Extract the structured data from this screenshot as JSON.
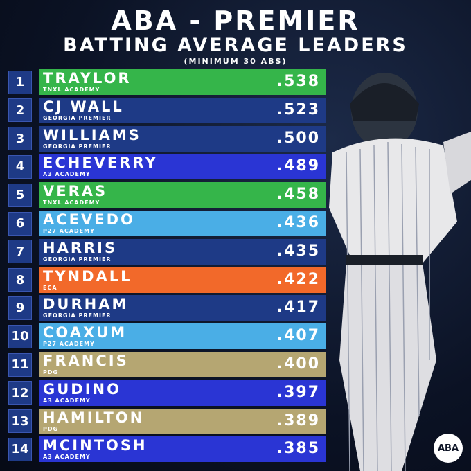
{
  "header": {
    "title": "ABA - PREMIER",
    "subtitle": "BATTING AVERAGE LEADERS",
    "note": "(MINIMUM 30 ABS)"
  },
  "rows": [
    {
      "rank": 1,
      "name": "TRAYLOR",
      "team": "TNXL ACADEMY",
      "avg": ".538",
      "color": "#35b54a"
    },
    {
      "rank": 2,
      "name": "CJ WALL",
      "team": "GEORGIA PREMIER",
      "avg": ".523",
      "color": "#1e3a86"
    },
    {
      "rank": 3,
      "name": "WILLIAMS",
      "team": "GEORGIA PREMIER",
      "avg": ".500",
      "color": "#1e3a86"
    },
    {
      "rank": 4,
      "name": "ECHEVERRY",
      "team": "A3 ACADEMY",
      "avg": ".489",
      "color": "#2a35d4"
    },
    {
      "rank": 5,
      "name": "VERAS",
      "team": "TNXL ACADEMY",
      "avg": ".458",
      "color": "#35b54a"
    },
    {
      "rank": 6,
      "name": "ACEVEDO",
      "team": "P27 ACADEMY",
      "avg": ".436",
      "color": "#4aaee6"
    },
    {
      "rank": 7,
      "name": "HARRIS",
      "team": "GEORGIA PREMIER",
      "avg": ".435",
      "color": "#1e3a86"
    },
    {
      "rank": 8,
      "name": "TYNDALL",
      "team": "ECA",
      "avg": ".422",
      "color": "#f2692a"
    },
    {
      "rank": 9,
      "name": "DURHAM",
      "team": "GEORGIA PREMIER",
      "avg": ".417",
      "color": "#1e3a86"
    },
    {
      "rank": 10,
      "name": "COAXUM",
      "team": "P27 ACADEMY",
      "avg": ".407",
      "color": "#4aaee6"
    },
    {
      "rank": 11,
      "name": "FRANCIS",
      "team": "PDG",
      "avg": ".400",
      "color": "#b5a672"
    },
    {
      "rank": 12,
      "name": "GUDINO",
      "team": "A3 ACADEMY",
      "avg": ".397",
      "color": "#2a35d4"
    },
    {
      "rank": 13,
      "name": "HAMILTON",
      "team": "PDG",
      "avg": ".389",
      "color": "#b5a672"
    },
    {
      "rank": 14,
      "name": "MCINTOSH",
      "team": "A3 ACADEMY",
      "avg": ".385",
      "color": "#2a35d4"
    }
  ],
  "logo": {
    "text": "ABA"
  }
}
